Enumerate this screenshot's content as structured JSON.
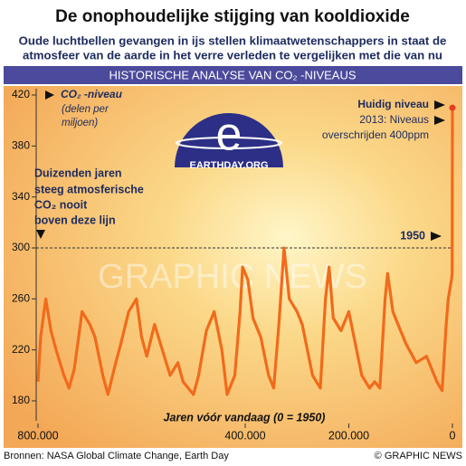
{
  "chart_data": {
    "type": "line",
    "title": "De onophoudelijke stijging van kooldioxide",
    "subtitle": [
      "Oude luchtbellen gevangen in ijs stellen klimaatwetenschappers in staat de",
      "atmosfeer van de aarde in het verre verleden te vergelijken met die van nu"
    ],
    "banner": "HISTORISCHE ANALYSE VAN CO₂ -NIVEAUS",
    "y_label": "CO₂ -niveau",
    "y_unit": [
      "(delen per",
      "miljoen)"
    ],
    "x_label": "Jaren vóór vandaag (0 = 1950)",
    "annotations": {
      "current": [
        "Huidig niveau",
        "2013: Niveaus",
        "overschrijden 400ppm"
      ],
      "history": [
        "Duizenden jaren",
        "steeg atmosferische",
        "CO₂ nooit",
        "boven deze lijn"
      ],
      "line_label": "1950",
      "line_value": 300
    },
    "logo_text": "EARTHDAY.ORG",
    "watermark": "GRAPHIC NEWS",
    "source": "Bronnen: NASA Global Climate Change, Earth Day",
    "credit": "© GRAPHIC NEWS",
    "color": "#f26a1b",
    "x": [
      800000,
      795000,
      785000,
      775000,
      765000,
      750000,
      740000,
      730000,
      715000,
      700000,
      690000,
      675000,
      665000,
      650000,
      640000,
      625000,
      610000,
      600000,
      590000,
      575000,
      560000,
      545000,
      530000,
      520000,
      500000,
      490000,
      475000,
      460000,
      445000,
      435000,
      420000,
      410000,
      405000,
      395000,
      385000,
      370000,
      355000,
      345000,
      335000,
      325000,
      315000,
      300000,
      290000,
      280000,
      270000,
      255000,
      245000,
      238000,
      230000,
      215000,
      200000,
      190000,
      175000,
      160000,
      150000,
      140000,
      130000,
      125000,
      115000,
      105000,
      90000,
      70000,
      50000,
      30000,
      20000,
      12000,
      8000,
      2000,
      500,
      0
    ],
    "values": [
      195,
      230,
      260,
      235,
      220,
      200,
      190,
      205,
      250,
      240,
      230,
      200,
      185,
      210,
      225,
      250,
      260,
      230,
      215,
      240,
      220,
      200,
      210,
      195,
      185,
      200,
      235,
      250,
      220,
      185,
      200,
      250,
      285,
      275,
      245,
      230,
      200,
      190,
      240,
      300,
      260,
      250,
      240,
      220,
      200,
      190,
      260,
      285,
      245,
      235,
      250,
      230,
      200,
      190,
      195,
      190,
      260,
      280,
      250,
      240,
      225,
      210,
      215,
      195,
      188,
      240,
      260,
      275,
      280,
      410
    ],
    "xlim": [
      800000,
      0
    ],
    "xticks": [
      {
        "value": 800000,
        "label": "800.000"
      },
      {
        "value": 400000,
        "label": "400.000"
      },
      {
        "value": 200000,
        "label": "200.000"
      },
      0
    ],
    "ylim": [
      170,
      427
    ],
    "yticks": [
      180,
      220,
      260,
      300,
      340,
      380,
      420
    ]
  }
}
